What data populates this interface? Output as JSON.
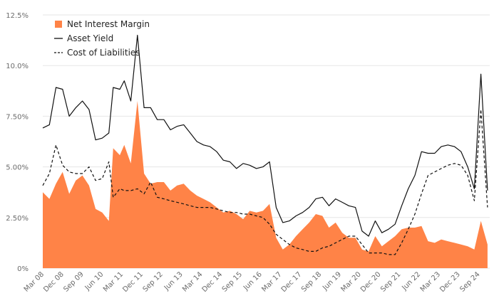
{
  "chart_data": {
    "type": "area",
    "title": "",
    "xlabel": "",
    "ylabel": "",
    "ylim": [
      0,
      12.5
    ],
    "y_ticks": [
      0,
      2.5,
      5,
      7.5,
      10,
      12.5
    ],
    "y_tick_labels": [
      "0%",
      "2.50%",
      "5.00%",
      "7.50%",
      "10.0%",
      "12.5%"
    ],
    "x_tick_labels": [
      "Mar 08",
      "Dec 08",
      "Sep 09",
      "Jun 10",
      "Mar 11",
      "Dec 11",
      "Sep 12",
      "Jun 13",
      "Mar 14",
      "Dec 14",
      "Sep 15",
      "Jun 16",
      "Mar 17",
      "Dec 17",
      "Sep 18",
      "Jun 19",
      "Mar 20",
      "Dec 20",
      "Sep 21",
      "Jun 22",
      "Mar 23",
      "Dec 23",
      "Sep 24"
    ],
    "grid": true,
    "legend_position": "top-left",
    "colors": {
      "net_interest_margin": "#ff8347",
      "asset_yield": "#111111",
      "cost_of_liabilities": "#111111",
      "grid": "#e6e6e6",
      "axis_text": "#6b6b6b"
    },
    "x": [
      "Mar 08",
      "Apr 08",
      "May 08",
      "Jun 08",
      "Jul 08",
      "Aug 08",
      "Sep 08",
      "Oct 08",
      "Nov 08",
      "Dec 08",
      "Jan 09",
      "Feb 09",
      "Mar 09",
      "Apr 09",
      "May 09",
      "Jun 09",
      "Jul 09",
      "Aug 09",
      "Sep 09",
      "Oct 09",
      "Nov 09",
      "Dec 09",
      "Jan 10",
      "Feb 10",
      "Mar 10",
      "Apr 10",
      "May 10",
      "Jun 10",
      "Jul 10",
      "Aug 10",
      "Sep 10",
      "Oct 10",
      "Nov 10",
      "Dec 10",
      "Jan 11",
      "Feb 11",
      "Mar 11",
      "Apr 11",
      "May 11",
      "Jun 11",
      "Jul 11",
      "Aug 11",
      "Sep 11",
      "Oct 11",
      "Nov 11",
      "Dec 11",
      "Jan 12",
      "Feb 12",
      "Mar 12",
      "Apr 12",
      "May 12",
      "Jun 12",
      "Jul 12",
      "Aug 12",
      "Sep 12",
      "Oct 12",
      "Nov 12",
      "Dec 12",
      "Jan 13",
      "Feb 13",
      "Mar 13",
      "Apr 13",
      "May 13",
      "Jun 13",
      "Jul 13",
      "Aug 13",
      "Sep 13",
      "Oct 13",
      "Nov 13",
      "Dec 13",
      "Jan 14",
      "Feb 14",
      "Mar 14",
      "Apr 14",
      "May 14",
      "Jun 14",
      "Jul 14",
      "Aug 14",
      "Sep 14",
      "Oct 14",
      "Nov 14",
      "Dec 14",
      "Jan 15",
      "Feb 15",
      "Mar 15",
      "Apr 15",
      "May 15",
      "Jun 15",
      "Jul 15",
      "Aug 15",
      "Sep 15",
      "Oct 15",
      "Nov 15",
      "Dec 15",
      "Jan 16",
      "Feb 16",
      "Mar 16",
      "Apr 16",
      "May 16",
      "Jun 16",
      "Jul 16",
      "Aug 16",
      "Sep 16",
      "Oct 16",
      "Nov 16",
      "Dec 16",
      "Jan 17",
      "Feb 17",
      "Mar 17",
      "Apr 17",
      "May 17",
      "Jun 17",
      "Jul 17",
      "Aug 17",
      "Sep 17",
      "Oct 17",
      "Nov 17",
      "Dec 17",
      "Jan 18",
      "Feb 18",
      "Mar 18",
      "Apr 18",
      "May 18",
      "Jun 18",
      "Jul 18",
      "Aug 18",
      "Sep 18",
      "Oct 18",
      "Nov 18",
      "Dec 18",
      "Jan 19",
      "Feb 19",
      "Mar 19",
      "Apr 19",
      "May 19",
      "Jun 19",
      "Jul 19",
      "Aug 19",
      "Sep 19",
      "Oct 19",
      "Nov 19",
      "Dec 19",
      "Jan 20",
      "Feb 20",
      "Mar 20",
      "Apr 20",
      "May 20",
      "Jun 20",
      "Jul 20",
      "Aug 20",
      "Sep 20",
      "Oct 20",
      "Nov 20",
      "Dec 20",
      "Jan 21",
      "Feb 21",
      "Mar 21",
      "Apr 21",
      "May 21",
      "Jun 21",
      "Jul 21",
      "Aug 21",
      "Sep 21",
      "Oct 21",
      "Nov 21",
      "Dec 21",
      "Jan 22",
      "Feb 22",
      "Mar 22",
      "Apr 22",
      "May 22",
      "Jun 22",
      "Jul 22",
      "Aug 22",
      "Sep 22",
      "Oct 22",
      "Nov 22",
      "Dec 22",
      "Jan 23",
      "Feb 23",
      "Mar 23",
      "Apr 23",
      "May 23",
      "Jun 23",
      "Jul 23",
      "Aug 23",
      "Sep 23",
      "Oct 23",
      "Nov 23",
      "Dec 23",
      "Jan 24",
      "Feb 24",
      "Mar 24",
      "Apr 24",
      "May 24",
      "Jun 24",
      "Jul 24",
      "Aug 24",
      "Sep 24",
      "Oct 24",
      "Nov 24",
      "Dec 24",
      "Jan 25",
      "Feb 25"
    ],
    "series": [
      {
        "name": "Net Interest Margin",
        "style": "filled-area",
        "points": [
          [
            "Mar 08",
            3.75
          ],
          [
            "Jun 08",
            3.42
          ],
          [
            "Sep 08",
            4.17
          ],
          [
            "Dec 08",
            4.75
          ],
          [
            "Mar 09",
            3.67
          ],
          [
            "Jun 09",
            4.33
          ],
          [
            "Sep 09",
            4.58
          ],
          [
            "Dec 09",
            4.08
          ],
          [
            "Mar 10",
            2.92
          ],
          [
            "Jun 10",
            2.75
          ],
          [
            "Sep 10",
            2.33
          ],
          [
            "Nov 10",
            5.92
          ],
          [
            "Feb 11",
            5.58
          ],
          [
            "Apr 11",
            6.08
          ],
          [
            "Jul 11",
            5.17
          ],
          [
            "Oct 11",
            8.25
          ],
          [
            "Jan 12",
            4.67
          ],
          [
            "Apr 12",
            4.17
          ],
          [
            "Jul 12",
            4.25
          ],
          [
            "Oct 12",
            4.25
          ],
          [
            "Jan 13",
            3.83
          ],
          [
            "Apr 13",
            4.08
          ],
          [
            "Jul 13",
            4.17
          ],
          [
            "Oct 13",
            3.83
          ],
          [
            "Jan 14",
            3.58
          ],
          [
            "Apr 14",
            3.42
          ],
          [
            "Jul 14",
            3.25
          ],
          [
            "Oct 14",
            3.0
          ],
          [
            "Jan 15",
            2.75
          ],
          [
            "Apr 15",
            2.83
          ],
          [
            "Jul 15",
            2.67
          ],
          [
            "Oct 15",
            2.42
          ],
          [
            "Jan 16",
            2.83
          ],
          [
            "Apr 16",
            2.75
          ],
          [
            "Jul 16",
            2.83
          ],
          [
            "Oct 16",
            3.17
          ],
          [
            "Jan 17",
            1.5
          ],
          [
            "Apr 17",
            0.92
          ],
          [
            "Jul 17",
            1.17
          ],
          [
            "Oct 17",
            1.58
          ],
          [
            "Jan 18",
            1.92
          ],
          [
            "Apr 18",
            2.25
          ],
          [
            "Jul 18",
            2.67
          ],
          [
            "Oct 18",
            2.58
          ],
          [
            "Jan 19",
            2.0
          ],
          [
            "Apr 19",
            2.25
          ],
          [
            "Jul 19",
            1.75
          ],
          [
            "Oct 19",
            1.5
          ],
          [
            "Jan 20",
            1.5
          ],
          [
            "Apr 20",
            0.92
          ],
          [
            "Jul 20",
            0.83
          ],
          [
            "Oct 20",
            1.58
          ],
          [
            "Jan 21",
            1.08
          ],
          [
            "Apr 21",
            1.33
          ],
          [
            "Jul 21",
            1.58
          ],
          [
            "Oct 21",
            1.92
          ],
          [
            "Jan 22",
            2.0
          ],
          [
            "Apr 22",
            2.0
          ],
          [
            "Jul 22",
            2.08
          ],
          [
            "Oct 22",
            1.33
          ],
          [
            "Jan 23",
            1.25
          ],
          [
            "Apr 23",
            1.42
          ],
          [
            "Jul 23",
            1.33
          ],
          [
            "Oct 23",
            1.25
          ],
          [
            "Jan 24",
            1.17
          ],
          [
            "Apr 24",
            1.08
          ],
          [
            "Jul 24",
            0.92
          ],
          [
            "Oct 24",
            2.33
          ],
          [
            "Jan 25",
            1.17
          ]
        ]
      },
      {
        "name": "Asset Yield",
        "style": "solid-line",
        "points": [
          [
            "Mar 08",
            6.92
          ],
          [
            "Jun 08",
            7.08
          ],
          [
            "Sep 08",
            8.92
          ],
          [
            "Dec 08",
            8.83
          ],
          [
            "Mar 09",
            7.5
          ],
          [
            "Jun 09",
            7.92
          ],
          [
            "Sep 09",
            8.25
          ],
          [
            "Dec 09",
            7.83
          ],
          [
            "Mar 10",
            6.33
          ],
          [
            "Jun 10",
            6.42
          ],
          [
            "Sep 10",
            6.67
          ],
          [
            "Nov 10",
            8.92
          ],
          [
            "Feb 11",
            8.83
          ],
          [
            "Apr 11",
            9.25
          ],
          [
            "Jul 11",
            8.25
          ],
          [
            "Oct 11",
            11.5
          ],
          [
            "Jan 12",
            7.92
          ],
          [
            "Apr 12",
            7.92
          ],
          [
            "Jul 12",
            7.33
          ],
          [
            "Oct 12",
            7.33
          ],
          [
            "Jan 13",
            6.83
          ],
          [
            "Apr 13",
            7.0
          ],
          [
            "Jul 13",
            7.08
          ],
          [
            "Oct 13",
            6.67
          ],
          [
            "Jan 14",
            6.25
          ],
          [
            "Apr 14",
            6.08
          ],
          [
            "Jul 14",
            6.0
          ],
          [
            "Oct 14",
            5.75
          ],
          [
            "Jan 15",
            5.33
          ],
          [
            "Apr 15",
            5.25
          ],
          [
            "Jul 15",
            4.92
          ],
          [
            "Oct 15",
            5.17
          ],
          [
            "Jan 16",
            5.08
          ],
          [
            "Apr 16",
            4.92
          ],
          [
            "Jul 16",
            5.0
          ],
          [
            "Oct 16",
            5.25
          ],
          [
            "Jan 17",
            3.0
          ],
          [
            "Apr 17",
            2.25
          ],
          [
            "Jul 17",
            2.33
          ],
          [
            "Oct 17",
            2.58
          ],
          [
            "Jan 18",
            2.75
          ],
          [
            "Apr 18",
            3.0
          ],
          [
            "Jul 18",
            3.42
          ],
          [
            "Oct 18",
            3.5
          ],
          [
            "Jan 19",
            3.08
          ],
          [
            "Apr 19",
            3.42
          ],
          [
            "Jul 19",
            3.25
          ],
          [
            "Oct 19",
            3.08
          ],
          [
            "Jan 20",
            3.0
          ],
          [
            "Apr 20",
            1.83
          ],
          [
            "Jul 20",
            1.58
          ],
          [
            "Oct 20",
            2.33
          ],
          [
            "Jan 21",
            1.75
          ],
          [
            "Apr 21",
            1.92
          ],
          [
            "Jul 21",
            2.17
          ],
          [
            "Oct 21",
            3.08
          ],
          [
            "Jan 22",
            3.92
          ],
          [
            "Apr 22",
            4.58
          ],
          [
            "Jul 22",
            5.75
          ],
          [
            "Oct 22",
            5.67
          ],
          [
            "Jan 23",
            5.67
          ],
          [
            "Apr 23",
            6.0
          ],
          [
            "Jul 23",
            6.08
          ],
          [
            "Oct 23",
            6.0
          ],
          [
            "Jan 24",
            5.75
          ],
          [
            "Apr 24",
            5.0
          ],
          [
            "Jul 24",
            3.92
          ],
          [
            "Oct 24",
            9.58
          ],
          [
            "Jan 25",
            3.83
          ]
        ]
      },
      {
        "name": "Cost of Liabilities",
        "style": "dashed-line",
        "points": [
          [
            "Mar 08",
            4.08
          ],
          [
            "Jun 08",
            4.67
          ],
          [
            "Sep 08",
            6.08
          ],
          [
            "Dec 08",
            5.08
          ],
          [
            "Mar 09",
            4.75
          ],
          [
            "Jun 09",
            4.67
          ],
          [
            "Sep 09",
            4.67
          ],
          [
            "Dec 09",
            5.0
          ],
          [
            "Mar 10",
            4.33
          ],
          [
            "Jun 10",
            4.42
          ],
          [
            "Sep 10",
            5.25
          ],
          [
            "Nov 10",
            3.5
          ],
          [
            "Feb 11",
            3.92
          ],
          [
            "Apr 11",
            3.83
          ],
          [
            "Jul 11",
            3.83
          ],
          [
            "Oct 11",
            3.92
          ],
          [
            "Jan 12",
            3.67
          ],
          [
            "Apr 12",
            4.25
          ],
          [
            "Jul 12",
            3.5
          ],
          [
            "Oct 12",
            3.42
          ],
          [
            "Jan 13",
            3.33
          ],
          [
            "Apr 13",
            3.25
          ],
          [
            "Jul 13",
            3.17
          ],
          [
            "Oct 13",
            3.08
          ],
          [
            "Jan 14",
            3.0
          ],
          [
            "Apr 14",
            3.0
          ],
          [
            "Jul 14",
            3.0
          ],
          [
            "Oct 14",
            2.92
          ],
          [
            "Jan 15",
            2.83
          ],
          [
            "Apr 15",
            2.75
          ],
          [
            "Jul 15",
            2.75
          ],
          [
            "Oct 15",
            2.67
          ],
          [
            "Jan 16",
            2.67
          ],
          [
            "Apr 16",
            2.58
          ],
          [
            "Jul 16",
            2.5
          ],
          [
            "Oct 16",
            2.17
          ],
          [
            "Jan 17",
            1.67
          ],
          [
            "Apr 17",
            1.42
          ],
          [
            "Jul 17",
            1.17
          ],
          [
            "Oct 17",
            1.0
          ],
          [
            "Jan 18",
            0.92
          ],
          [
            "Apr 18",
            0.83
          ],
          [
            "Jul 18",
            0.83
          ],
          [
            "Oct 18",
            1.0
          ],
          [
            "Jan 19",
            1.08
          ],
          [
            "Apr 19",
            1.25
          ],
          [
            "Jul 19",
            1.42
          ],
          [
            "Oct 19",
            1.58
          ],
          [
            "Jan 20",
            1.58
          ],
          [
            "Apr 20",
            1.17
          ],
          [
            "Jul 20",
            0.75
          ],
          [
            "Oct 20",
            0.75
          ],
          [
            "Jan 21",
            0.75
          ],
          [
            "Apr 21",
            0.67
          ],
          [
            "Jul 21",
            0.67
          ],
          [
            "Oct 21",
            1.25
          ],
          [
            "Jan 22",
            1.92
          ],
          [
            "Apr 22",
            2.67
          ],
          [
            "Jul 22",
            3.67
          ],
          [
            "Oct 22",
            4.58
          ],
          [
            "Jan 23",
            4.75
          ],
          [
            "Apr 23",
            4.92
          ],
          [
            "Jul 23",
            5.08
          ],
          [
            "Oct 23",
            5.17
          ],
          [
            "Jan 24",
            5.08
          ],
          [
            "Apr 24",
            4.58
          ],
          [
            "Jul 24",
            3.33
          ],
          [
            "Oct 24",
            7.83
          ],
          [
            "Jan 25",
            3.0
          ]
        ]
      }
    ]
  }
}
